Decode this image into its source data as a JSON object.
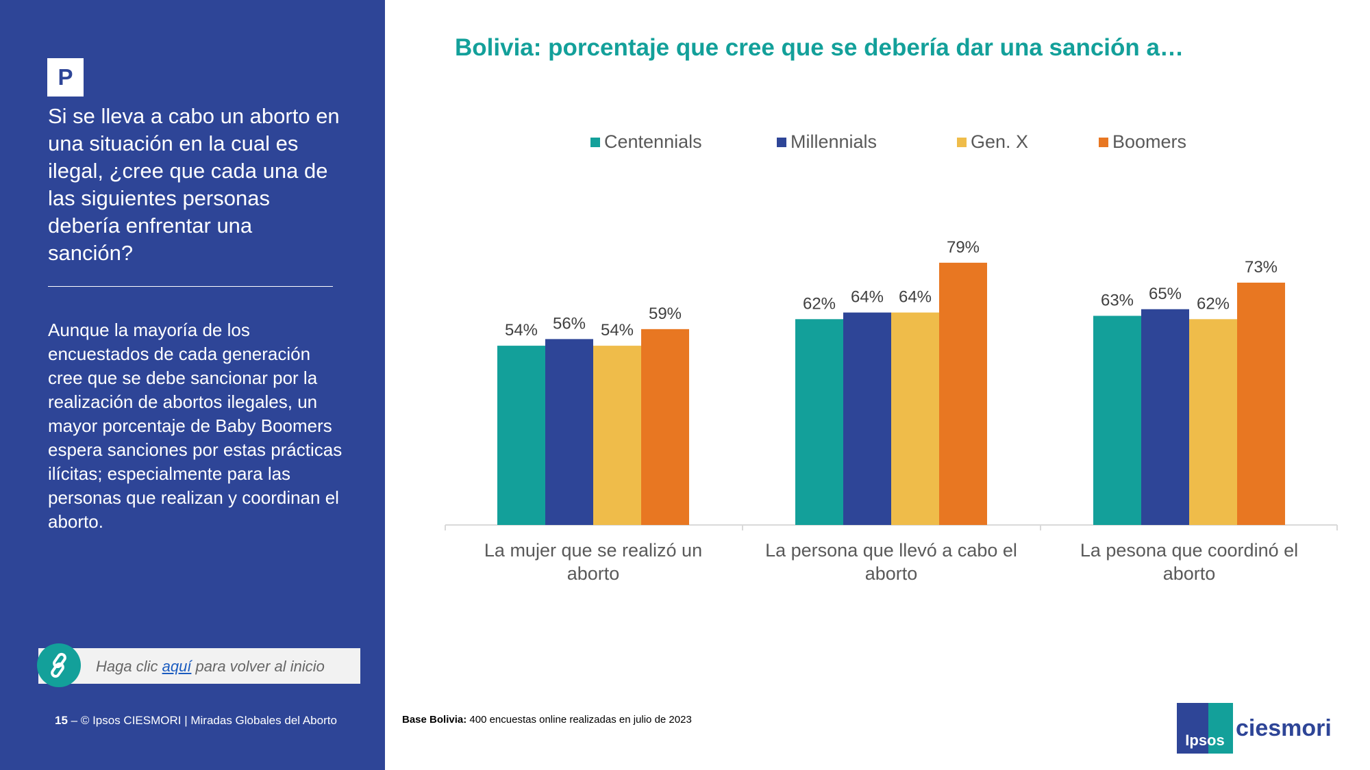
{
  "sidebar": {
    "badge": "P",
    "question": "Si se lleva a cabo un aborto en una situación en la cual es ilegal, ¿cree que cada una de las siguientes personas debería enfrentar una sanción?",
    "insight": "Aunque la mayoría de los encuestados de cada generación cree que se debe sancionar por la realización de abortos ilegales, un mayor porcentaje de Baby Boomers espera sanciones por estas prácticas ilícitas; especialmente para las personas que realizan y coordinan el aborto.",
    "back_link": {
      "prefix": "Haga clic ",
      "link": "aquí",
      "suffix": " para volver al inicio"
    },
    "footer": {
      "page": "15",
      "dash": " – ",
      "text": "© Ipsos CIESMORI | Miradas Globales del Aborto"
    }
  },
  "base_note": {
    "label": "Base Bolivia:",
    "text": " 400 encuestas online realizadas en julio de 2023"
  },
  "logo": {
    "brand": "Ipsos",
    "word": "ciesmori"
  },
  "colors": {
    "sidebar": "#2e4597",
    "accent": "#13a09a"
  },
  "chart_data": {
    "type": "bar",
    "title": "Bolivia: porcentaje que cree que se debería dar una sanción a…",
    "categories": [
      [
        "La mujer que se realizó un",
        "aborto"
      ],
      [
        "La persona que llevó a cabo el",
        "aborto"
      ],
      [
        "La pesona que coordinó el",
        "aborto"
      ]
    ],
    "series": [
      {
        "name": "Centennials",
        "color": "#13a09a",
        "values": [
          54,
          62,
          63
        ]
      },
      {
        "name": "Millennials",
        "color": "#2e4597",
        "values": [
          56,
          64,
          65
        ]
      },
      {
        "name": "Gen. X",
        "color": "#efbc4a",
        "values": [
          54,
          64,
          62
        ]
      },
      {
        "name": "Boomers",
        "color": "#e87722",
        "values": [
          59,
          79,
          73
        ]
      }
    ],
    "value_suffix": "%",
    "ylim": [
      0,
      100
    ],
    "legend_position": "top",
    "grid": false
  }
}
